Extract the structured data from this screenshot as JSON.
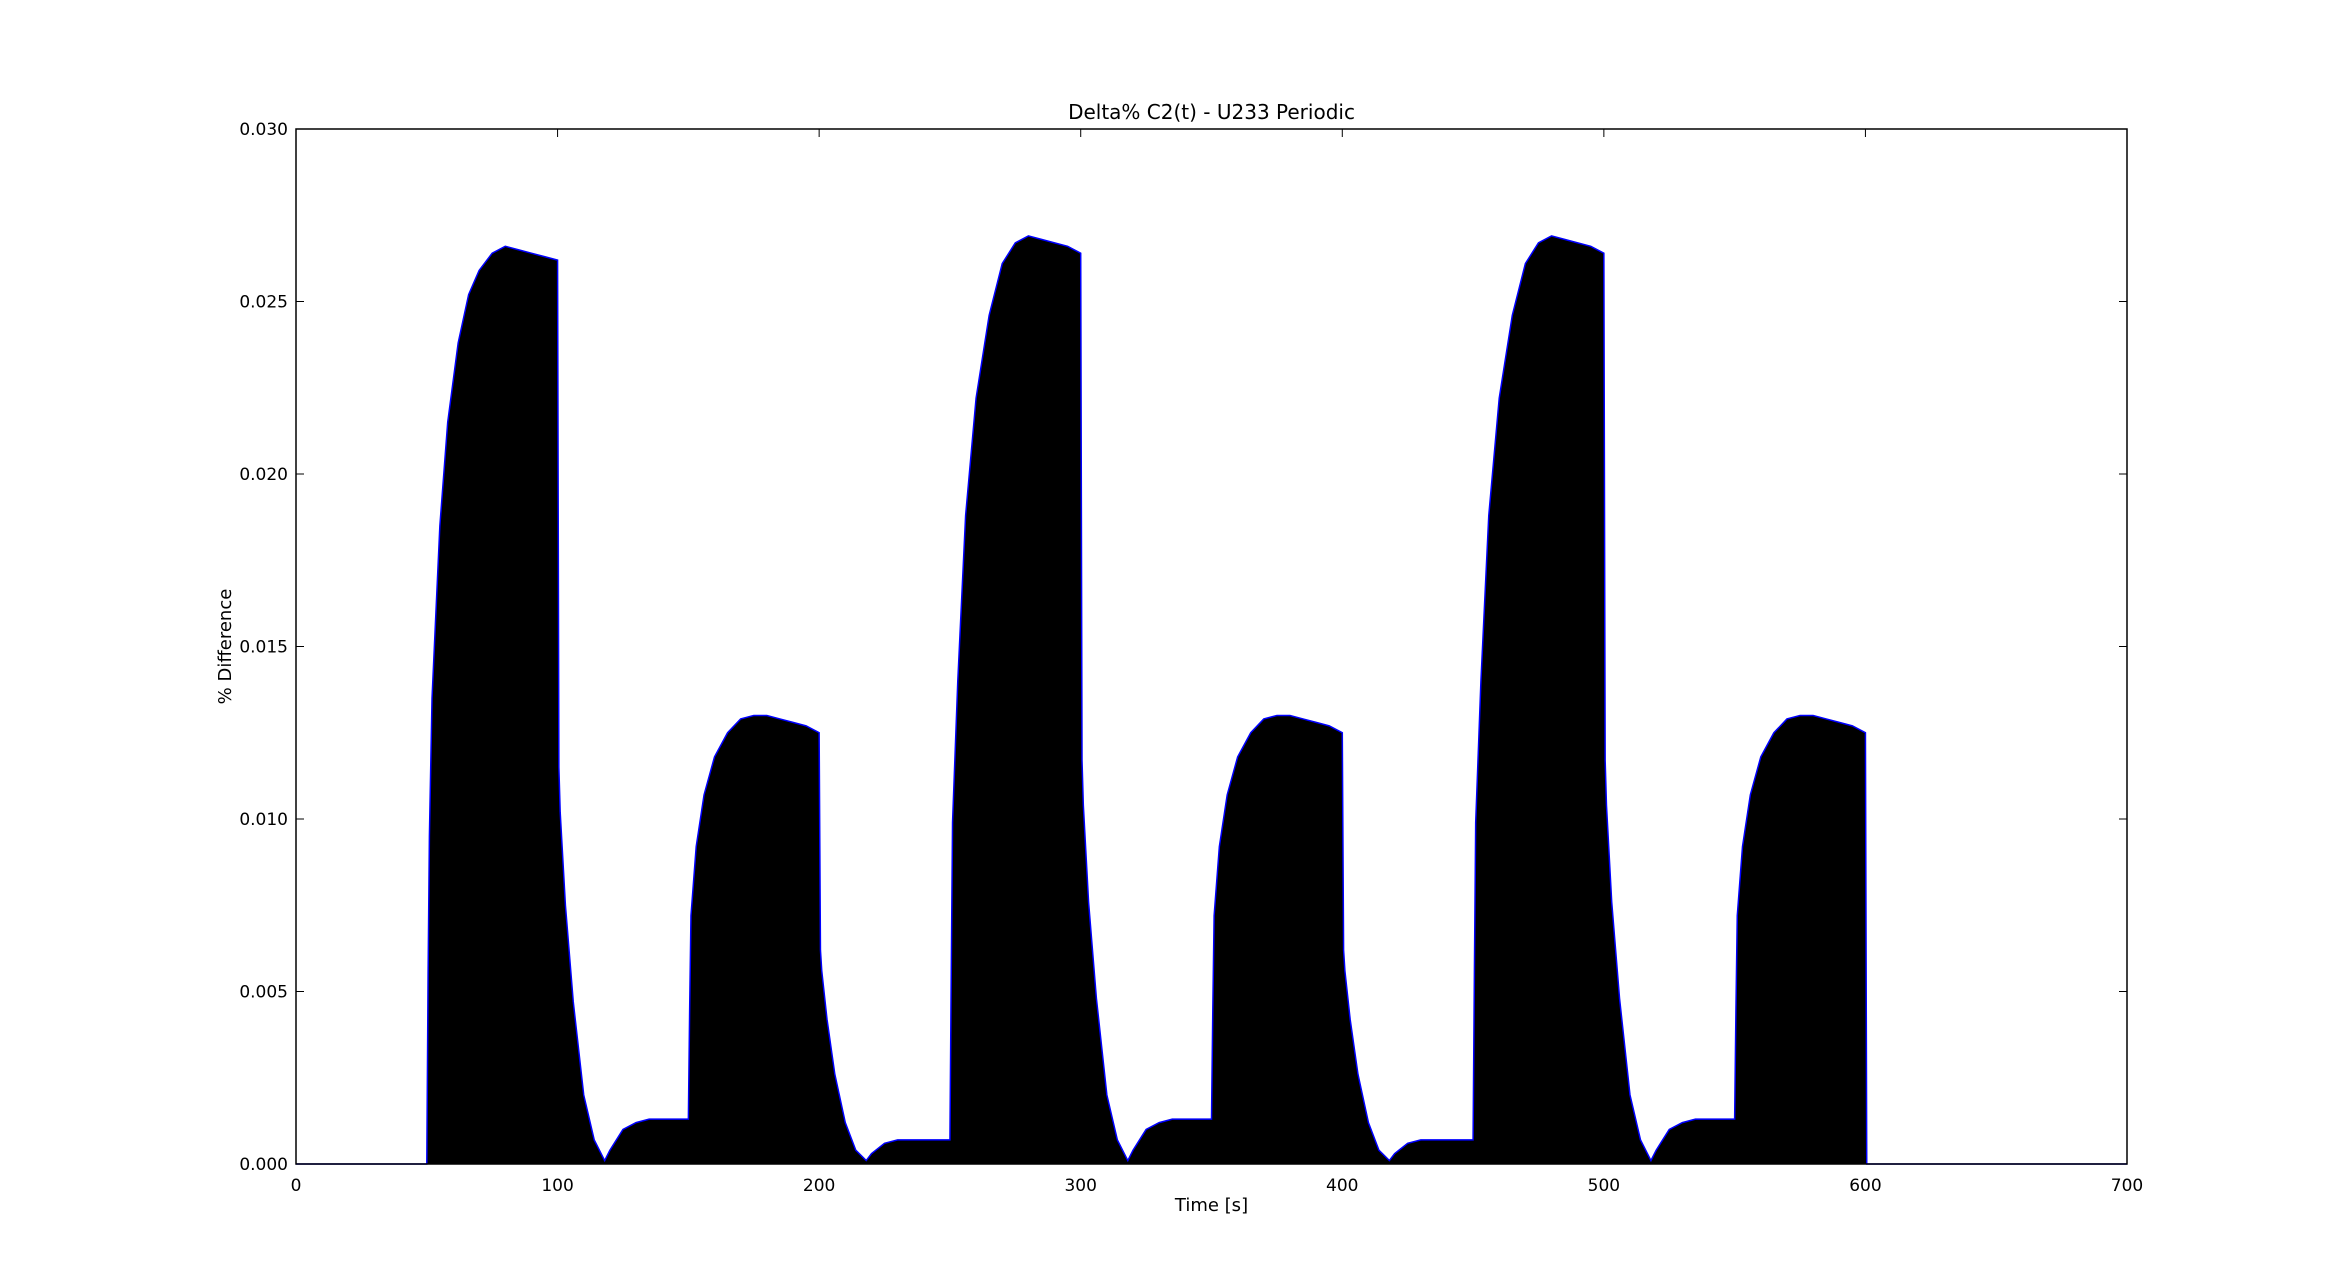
{
  "chart_data": {
    "type": "area",
    "title": "Delta% C2(t) - U233 Periodic",
    "xlabel": "Time [s]",
    "ylabel": "% Difference",
    "xlim": [
      0,
      700
    ],
    "ylim": [
      0,
      0.03
    ],
    "x_ticks": [
      "0",
      "100",
      "200",
      "300",
      "400",
      "500",
      "600",
      "700"
    ],
    "y_ticks": [
      "0.000",
      "0.005",
      "0.010",
      "0.015",
      "0.020",
      "0.025",
      "0.030"
    ],
    "x_tick_values": [
      0,
      100,
      200,
      300,
      400,
      500,
      600,
      700
    ],
    "y_tick_values": [
      0,
      0.005,
      0.01,
      0.015,
      0.02,
      0.025,
      0.03
    ],
    "grid": false,
    "line_color": "#0000ff",
    "fill_color": "#000000",
    "series": [
      {
        "x": [
          0,
          50,
          50.5,
          51,
          52,
          55,
          58,
          62,
          66,
          70,
          75,
          80,
          85,
          90,
          95,
          100,
          100.5,
          101,
          103,
          106,
          110,
          114,
          118,
          120,
          125,
          130,
          135,
          140,
          145,
          150,
          150.5,
          151,
          153,
          156,
          160,
          165,
          170,
          175,
          180,
          185,
          190,
          195,
          200,
          200.5,
          201,
          203,
          206,
          210,
          214,
          218,
          220,
          225,
          230,
          235,
          240,
          245,
          250,
          250.5,
          251,
          253,
          256,
          260,
          265,
          270,
          275,
          280,
          285,
          290,
          295,
          300,
          300.5,
          301,
          303,
          306,
          310,
          314,
          318,
          320,
          325,
          330,
          335,
          340,
          345,
          350,
          350.5,
          351,
          353,
          356,
          360,
          365,
          370,
          375,
          380,
          385,
          390,
          395,
          400,
          400.5,
          401,
          403,
          406,
          410,
          414,
          418,
          420,
          425,
          430,
          435,
          440,
          445,
          450,
          450.5,
          451,
          453,
          456,
          460,
          465,
          470,
          475,
          480,
          485,
          490,
          495,
          500,
          500.5,
          501,
          503,
          506,
          510,
          514,
          518,
          520,
          525,
          530,
          535,
          540,
          545,
          550,
          550.5,
          551,
          553,
          556,
          560,
          565,
          570,
          575,
          580,
          585,
          590,
          595,
          600,
          600.5,
          601,
          700
        ],
        "y": [
          0,
          0,
          0.0055,
          0.0095,
          0.0135,
          0.0185,
          0.0215,
          0.0238,
          0.0252,
          0.0259,
          0.0264,
          0.0266,
          0.0265,
          0.0264,
          0.0263,
          0.0262,
          0.0115,
          0.0102,
          0.0075,
          0.0047,
          0.002,
          0.0007,
          0.0001,
          0.0004,
          0.001,
          0.0012,
          0.0013,
          0.0013,
          0.0013,
          0.0013,
          0.0045,
          0.0072,
          0.0092,
          0.0107,
          0.0118,
          0.0125,
          0.0129,
          0.013,
          0.013,
          0.0129,
          0.0128,
          0.0127,
          0.0125,
          0.0062,
          0.0056,
          0.0042,
          0.0026,
          0.0012,
          0.0004,
          0.0001,
          0.0003,
          0.0006,
          0.0007,
          0.0007,
          0.0007,
          0.0007,
          0.0007,
          0.0055,
          0.0099,
          0.014,
          0.0188,
          0.0222,
          0.0246,
          0.0261,
          0.0267,
          0.0269,
          0.0268,
          0.0267,
          0.0266,
          0.0264,
          0.0117,
          0.0104,
          0.0076,
          0.0048,
          0.002,
          0.0007,
          0.0001,
          0.0004,
          0.001,
          0.0012,
          0.0013,
          0.0013,
          0.0013,
          0.0013,
          0.0045,
          0.0072,
          0.0092,
          0.0107,
          0.0118,
          0.0125,
          0.0129,
          0.013,
          0.013,
          0.0129,
          0.0128,
          0.0127,
          0.0125,
          0.0062,
          0.0056,
          0.0042,
          0.0026,
          0.0012,
          0.0004,
          0.0001,
          0.0003,
          0.0006,
          0.0007,
          0.0007,
          0.0007,
          0.0007,
          0.0007,
          0.0055,
          0.0099,
          0.014,
          0.0188,
          0.0222,
          0.0246,
          0.0261,
          0.0267,
          0.0269,
          0.0268,
          0.0267,
          0.0266,
          0.0264,
          0.0117,
          0.0104,
          0.0076,
          0.0048,
          0.002,
          0.0007,
          0.0001,
          0.0004,
          0.001,
          0.0012,
          0.0013,
          0.0013,
          0.0013,
          0.0013,
          0.0045,
          0.0072,
          0.0092,
          0.0107,
          0.0118,
          0.0125,
          0.0129,
          0.013,
          0.013,
          0.0129,
          0.0128,
          0.0127,
          0.0125,
          0,
          0,
          0
        ]
      }
    ]
  }
}
